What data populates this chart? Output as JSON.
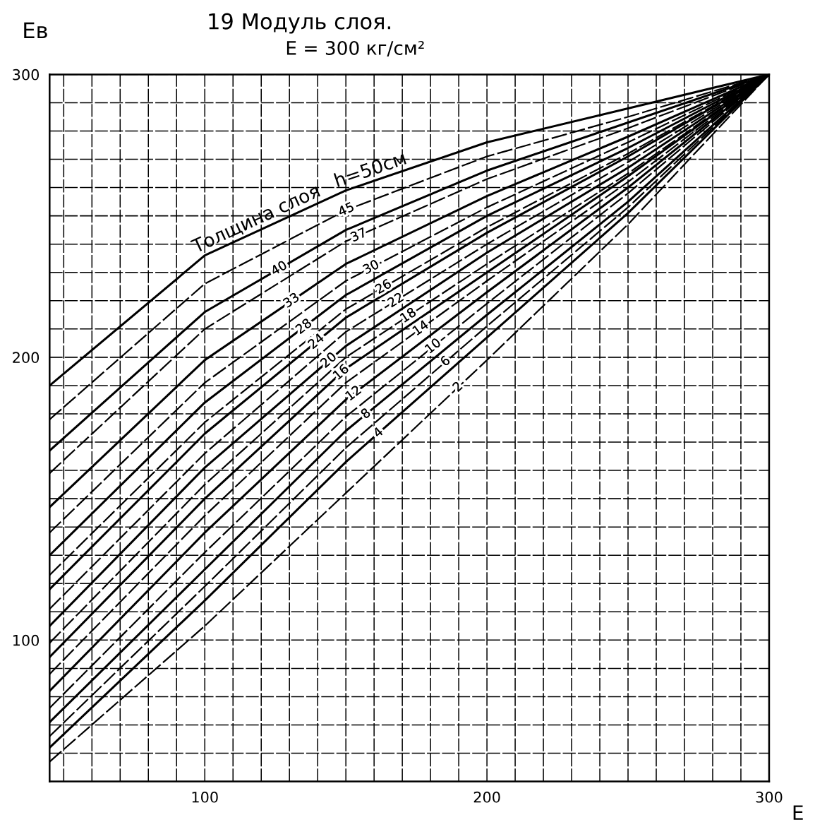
{
  "chart_data": {
    "type": "line",
    "title": "19 Модуль слоя.",
    "subtitle": "E = 300 кг/см²",
    "xlabel": "E",
    "ylabel": "Eв",
    "x": [
      45,
      100,
      150,
      200,
      250,
      300
    ],
    "series": [
      {
        "name": "h=50см",
        "color": "#000000",
        "line_style": "solid",
        "values": [
          190,
          236,
          259,
          276,
          288,
          300
        ]
      },
      {
        "name": "45",
        "color": "#000000",
        "line_style": "dashed",
        "values": [
          178,
          226,
          252,
          271,
          285,
          300
        ]
      },
      {
        "name": "40",
        "color": "#000000",
        "line_style": "solid",
        "values": [
          167,
          216,
          245,
          266,
          283,
          300
        ]
      },
      {
        "name": "37",
        "color": "#000000",
        "line_style": "dashed",
        "values": [
          159,
          210,
          241,
          263,
          281,
          300
        ]
      },
      {
        "name": "33",
        "color": "#000000",
        "line_style": "solid",
        "values": [
          147,
          199,
          233,
          257,
          278,
          300
        ]
      },
      {
        "name": "30",
        "color": "#000000",
        "line_style": "dashed",
        "values": [
          138,
          191,
          227,
          253,
          276,
          300
        ]
      },
      {
        "name": "28",
        "color": "#000000",
        "line_style": "solid",
        "values": [
          130,
          184,
          222,
          250,
          274,
          300
        ]
      },
      {
        "name": "26",
        "color": "#000000",
        "line_style": "dashed",
        "values": [
          123,
          177,
          217,
          246,
          272,
          300
        ]
      },
      {
        "name": "24",
        "color": "#000000",
        "line_style": "solid",
        "values": [
          118,
          173,
          214,
          244,
          271,
          300
        ]
      },
      {
        "name": "22",
        "color": "#000000",
        "line_style": "dashed",
        "values": [
          111,
          166,
          209,
          240,
          269,
          300
        ]
      },
      {
        "name": "20",
        "color": "#000000",
        "line_style": "solid",
        "values": [
          105,
          161,
          204,
          237,
          267,
          300
        ]
      },
      {
        "name": "18",
        "color": "#000000",
        "line_style": "dashed",
        "values": [
          99,
          155,
          200,
          233,
          265,
          300
        ]
      },
      {
        "name": "16",
        "color": "#000000",
        "line_style": "solid",
        "values": [
          94,
          150,
          196,
          230,
          264,
          300
        ]
      },
      {
        "name": "14",
        "color": "#000000",
        "line_style": "dashed",
        "values": [
          88,
          144,
          191,
          227,
          262,
          300
        ]
      },
      {
        "name": "12",
        "color": "#000000",
        "line_style": "solid",
        "values": [
          82,
          138,
          185,
          223,
          260,
          300
        ]
      },
      {
        "name": "10",
        "color": "#000000",
        "line_style": "dashed",
        "values": [
          76,
          131,
          179,
          219,
          258,
          300
        ]
      },
      {
        "name": "8",
        "color": "#000000",
        "line_style": "solid",
        "values": [
          71,
          125,
          174,
          215,
          255,
          300
        ]
      },
      {
        "name": "6",
        "color": "#000000",
        "line_style": "dashed",
        "values": [
          66,
          119,
          168,
          211,
          253,
          300
        ]
      },
      {
        "name": "4",
        "color": "#000000",
        "line_style": "solid",
        "values": [
          62,
          114,
          163,
          207,
          251,
          300
        ]
      },
      {
        "name": "2",
        "color": "#000000",
        "line_style": "dashed",
        "values": [
          57,
          105,
          152,
          199,
          247,
          300
        ]
      }
    ],
    "xlim": [
      45,
      300
    ],
    "ylim": [
      50,
      300
    ],
    "xticks": [
      {
        "value": 50,
        "label": null
      },
      {
        "value": 60,
        "label": null
      },
      {
        "value": 70,
        "label": null
      },
      {
        "value": 80,
        "label": null
      },
      {
        "value": 90,
        "label": null
      },
      100,
      {
        "value": 110,
        "label": null
      },
      {
        "value": 120,
        "label": null
      },
      {
        "value": 130,
        "label": null
      },
      {
        "value": 140,
        "label": null
      },
      {
        "value": 150,
        "label": null
      },
      {
        "value": 160,
        "label": null
      },
      {
        "value": 170,
        "label": null
      },
      {
        "value": 180,
        "label": null
      },
      {
        "value": 190,
        "label": null
      },
      200,
      {
        "value": 210,
        "label": null
      },
      {
        "value": 220,
        "label": null
      },
      {
        "value": 230,
        "label": null
      },
      {
        "value": 240,
        "label": null
      },
      {
        "value": 250,
        "label": null
      },
      {
        "value": 260,
        "label": null
      },
      {
        "value": 270,
        "label": null
      },
      {
        "value": 280,
        "label": null
      },
      {
        "value": 290,
        "label": null
      },
      300
    ],
    "yticks": [
      {
        "value": 60,
        "label": null
      },
      {
        "value": 70,
        "label": null
      },
      {
        "value": 80,
        "label": null
      },
      {
        "value": 90,
        "label": null
      },
      100,
      {
        "value": 110,
        "label": null
      },
      {
        "value": 120,
        "label": null
      },
      {
        "value": 130,
        "label": null
      },
      {
        "value": 140,
        "label": null
      },
      {
        "value": 150,
        "label": null
      },
      {
        "value": 160,
        "label": null
      },
      {
        "value": 170,
        "label": null
      },
      {
        "value": 180,
        "label": null
      },
      {
        "value": 190,
        "label": null
      },
      200,
      {
        "value": 210,
        "label": null
      },
      {
        "value": 220,
        "label": null
      },
      {
        "value": 230,
        "label": null
      },
      {
        "value": 240,
        "label": null
      },
      {
        "value": 250,
        "label": null
      },
      {
        "value": 260,
        "label": null
      },
      {
        "value": 270,
        "label": null
      },
      {
        "value": 280,
        "label": null
      },
      {
        "value": 290,
        "label": null
      },
      300
    ],
    "grid": true,
    "marker": "none",
    "annotations": [
      "Толщина слоя"
    ]
  }
}
